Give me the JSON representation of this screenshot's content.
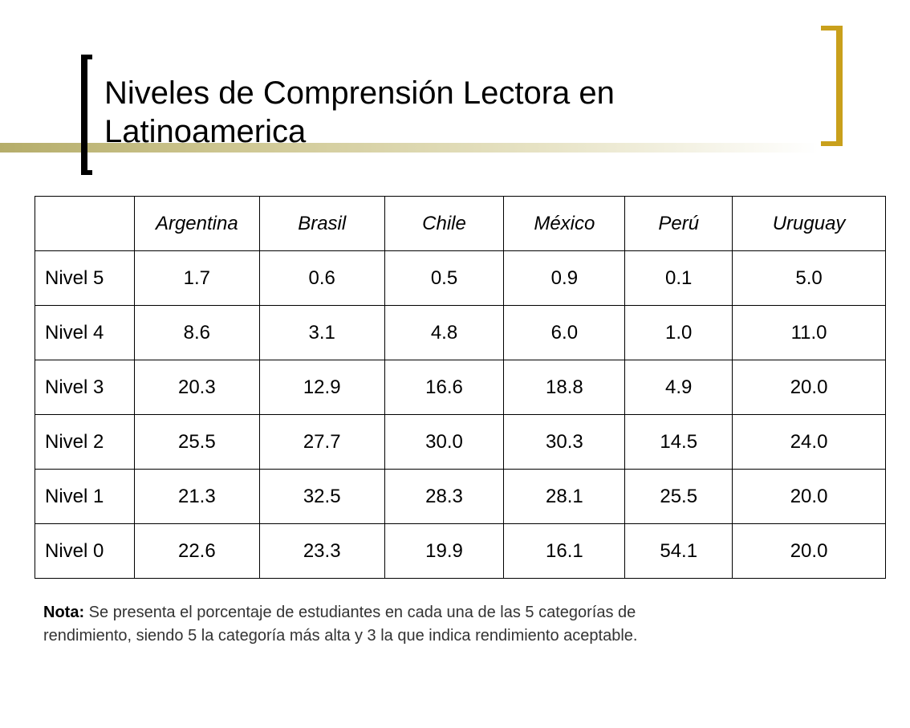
{
  "title_line1": "Niveles de Comprensión Lectora en",
  "title_line2": "Latinoamerica",
  "accent_color": "#c9a01c",
  "table": {
    "headers": [
      "",
      "Argentina",
      "Brasil",
      "Chile",
      "México",
      "Perú",
      "Uruguay"
    ],
    "rows": [
      {
        "label": "Nivel 5",
        "values": [
          "1.7",
          "0.6",
          "0.5",
          "0.9",
          "0.1",
          "5.0"
        ]
      },
      {
        "label": "Nivel 4",
        "values": [
          "8.6",
          "3.1",
          "4.8",
          "6.0",
          "1.0",
          "11.0"
        ]
      },
      {
        "label": "Nivel 3",
        "values": [
          "20.3",
          "12.9",
          "16.6",
          "18.8",
          "4.9",
          "20.0"
        ]
      },
      {
        "label": "Nivel 2",
        "values": [
          "25.5",
          "27.7",
          "30.0",
          "30.3",
          "14.5",
          "24.0"
        ]
      },
      {
        "label": "Nivel 1",
        "values": [
          "21.3",
          "32.5",
          "28.3",
          "28.1",
          "25.5",
          "20.0"
        ]
      },
      {
        "label": "Nivel 0",
        "values": [
          "22.6",
          "23.3",
          "19.9",
          "16.1",
          "54.1",
          "20.0"
        ]
      }
    ]
  },
  "note": {
    "label": "Nota:",
    "line1": "Se presenta el porcentaje de estudiantes en cada una de las 5 categorías de",
    "line2": "rendimiento, siendo 5 la categoría más alta y 3 la que indica rendimiento aceptable."
  }
}
